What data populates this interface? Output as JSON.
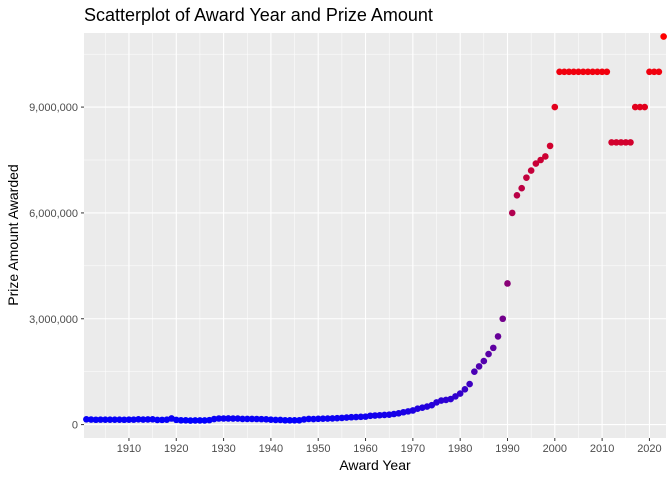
{
  "chart_data": {
    "type": "scatter",
    "title": "Scatterplot of Award Year and Prize Amount",
    "xlabel": "Award Year",
    "ylabel": "Prize Amount Awarded",
    "xlim": [
      1900.5,
      2023.5
    ],
    "ylim": [
      -380000,
      11100000
    ],
    "xticks": [
      1910,
      1920,
      1930,
      1940,
      1950,
      1960,
      1970,
      1980,
      1990,
      2000,
      2010,
      2020
    ],
    "xtick_labels": [
      "1910",
      "1920",
      "1930",
      "1940",
      "1950",
      "1960",
      "1970",
      "1980",
      "1990",
      "2000",
      "2010",
      "2020"
    ],
    "yticks": [
      0,
      3000000,
      6000000,
      9000000
    ],
    "ytick_labels": [
      "0",
      "3,000,000",
      "6,000,000",
      "9,000,000"
    ],
    "grid": true,
    "legend": "none",
    "color_scale": {
      "low": "#0000ff",
      "high": "#ff0000"
    },
    "x": [
      1901,
      1902,
      1903,
      1904,
      1905,
      1906,
      1907,
      1908,
      1909,
      1910,
      1911,
      1912,
      1913,
      1914,
      1915,
      1916,
      1917,
      1918,
      1919,
      1920,
      1921,
      1922,
      1923,
      1924,
      1925,
      1926,
      1927,
      1928,
      1929,
      1930,
      1931,
      1932,
      1933,
      1934,
      1935,
      1936,
      1937,
      1938,
      1939,
      1940,
      1941,
      1942,
      1943,
      1944,
      1945,
      1946,
      1947,
      1948,
      1949,
      1950,
      1951,
      1952,
      1953,
      1954,
      1955,
      1956,
      1957,
      1958,
      1959,
      1960,
      1961,
      1962,
      1963,
      1964,
      1965,
      1966,
      1967,
      1968,
      1969,
      1970,
      1971,
      1972,
      1973,
      1974,
      1975,
      1976,
      1977,
      1978,
      1979,
      1980,
      1981,
      1982,
      1983,
      1984,
      1985,
      1986,
      1987,
      1988,
      1989,
      1990,
      1991,
      1992,
      1993,
      1994,
      1995,
      1996,
      1997,
      1998,
      1999,
      2000,
      2001,
      2002,
      2003,
      2004,
      2005,
      2006,
      2007,
      2008,
      2009,
      2010,
      2011,
      2012,
      2013,
      2014,
      2015,
      2016,
      2017,
      2018,
      2019,
      2020,
      2021,
      2022,
      2023
    ],
    "y": [
      150782,
      141847,
      137662,
      140703,
      138089,
      138536,
      138796,
      139800,
      137600,
      140476,
      140695,
      148822,
      143010,
      146900,
      149250,
      131793,
      133823,
      138198,
      173206,
      134100,
      121573,
      122483,
      114935,
      116719,
      118165,
      116960,
      126501,
      156939,
      172760,
      172947,
      173206,
      171753,
      170332,
      159917,
      159850,
      159850,
      158463,
      155077,
      148822,
      138570,
      132000,
      131000,
      121841,
      121524,
      121333,
      121841,
      146115,
      159773,
      156290,
      164304,
      167612,
      171135,
      175293,
      181647,
      190000,
      200123,
      208629,
      214559,
      220678,
      225987,
      250233,
      257220,
      265000,
      273000,
      282000,
      300000,
      320000,
      350000,
      375000,
      400000,
      450000,
      480000,
      510000,
      550000,
      630000,
      681000,
      700000,
      725000,
      800000,
      880000,
      1000000,
      1150000,
      1500000,
      1650000,
      1800000,
      2000000,
      2175000,
      2500000,
      3000000,
      4000000,
      6000000,
      6500000,
      6700000,
      7000000,
      7200000,
      7400000,
      7500000,
      7600000,
      7900000,
      9000000,
      10000000,
      10000000,
      10000000,
      10000000,
      10000000,
      10000000,
      10000000,
      10000000,
      10000000,
      10000000,
      10000000,
      8000000,
      8000000,
      8000000,
      8000000,
      8000000,
      9000000,
      9000000,
      9000000,
      10000000,
      10000000,
      10000000,
      11000000
    ]
  }
}
